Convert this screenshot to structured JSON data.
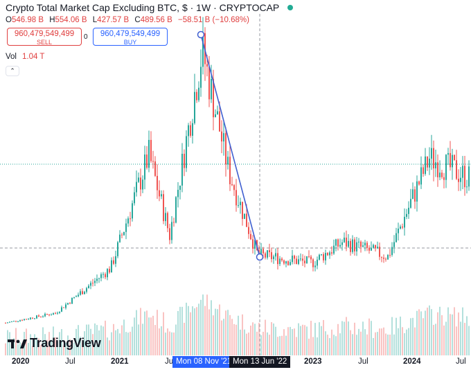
{
  "header": {
    "title": "Crypto Total Market Cap Excluding BTC, $ · 1W · CRYPTOCAP",
    "live_indicator_color": "#22ab94"
  },
  "ohlc": {
    "open_key": "O",
    "open": "546.98 B",
    "high_key": "H",
    "high": "554.06 B",
    "low_key": "L",
    "low": "427.57 B",
    "close_key": "C",
    "close": "489.56 B",
    "change": "−58.51 B (−10.68%)"
  },
  "trade": {
    "sell_price": "960,479,549,499",
    "sell_label": "SELL",
    "spread": "0",
    "buy_price": "960,479,549,499",
    "buy_label": "BUY"
  },
  "volume": {
    "label": "Vol",
    "value": "1.04 T"
  },
  "collapse_icon": "chevron-double-up-icon",
  "logo": {
    "wordmark": "TradingView",
    "icon": "tradingview-logo-icon"
  },
  "x_axis": {
    "labels": [
      {
        "text": "2020",
        "bold": true
      },
      {
        "text": "Jul",
        "bold": false
      },
      {
        "text": "2021",
        "bold": true
      },
      {
        "text": "Jul",
        "bold": false
      },
      {
        "text": "2023",
        "bold": true
      },
      {
        "text": "Jul",
        "bold": false
      },
      {
        "text": "2024",
        "bold": true
      },
      {
        "text": "Jul",
        "bold": false
      }
    ],
    "highlight_start": "Mon 08 Nov '21",
    "highlight_end": "Mon 13 Jun '22"
  },
  "colors": {
    "up": "#26a69a",
    "down": "#ef5350",
    "drawing": "#3f5fd0",
    "crosshair": "#9598a1",
    "price_line": "#26a69a"
  },
  "chart_data": {
    "type": "candlestick",
    "symbol": "CRYPTOCAP",
    "interval": "1W",
    "drawing": {
      "type": "trend_line",
      "start": {
        "date": "Mon 08 Nov '21",
        "value_billions": 1750
      },
      "end": {
        "date": "Mon 13 Jun '22",
        "value_billions": 480
      }
    },
    "approx_weekly_close_billions": [
      {
        "period": "2020 Q1",
        "value": 60
      },
      {
        "period": "2020 Q3",
        "value": 120
      },
      {
        "period": "2021 Q1",
        "value": 400
      },
      {
        "period": "2021 May",
        "value": 1100
      },
      {
        "period": "2021 Jul",
        "value": 600
      },
      {
        "period": "2021 Nov",
        "value": 1750
      },
      {
        "period": "2022 Mar",
        "value": 1000
      },
      {
        "period": "2022 Jun",
        "value": 480
      },
      {
        "period": "2023 Jan",
        "value": 430
      },
      {
        "period": "2023 Apr",
        "value": 560
      },
      {
        "period": "2023 Oct",
        "value": 470
      },
      {
        "period": "2024 Mar",
        "value": 1080
      },
      {
        "period": "2024 Jul",
        "value": 960
      }
    ]
  }
}
